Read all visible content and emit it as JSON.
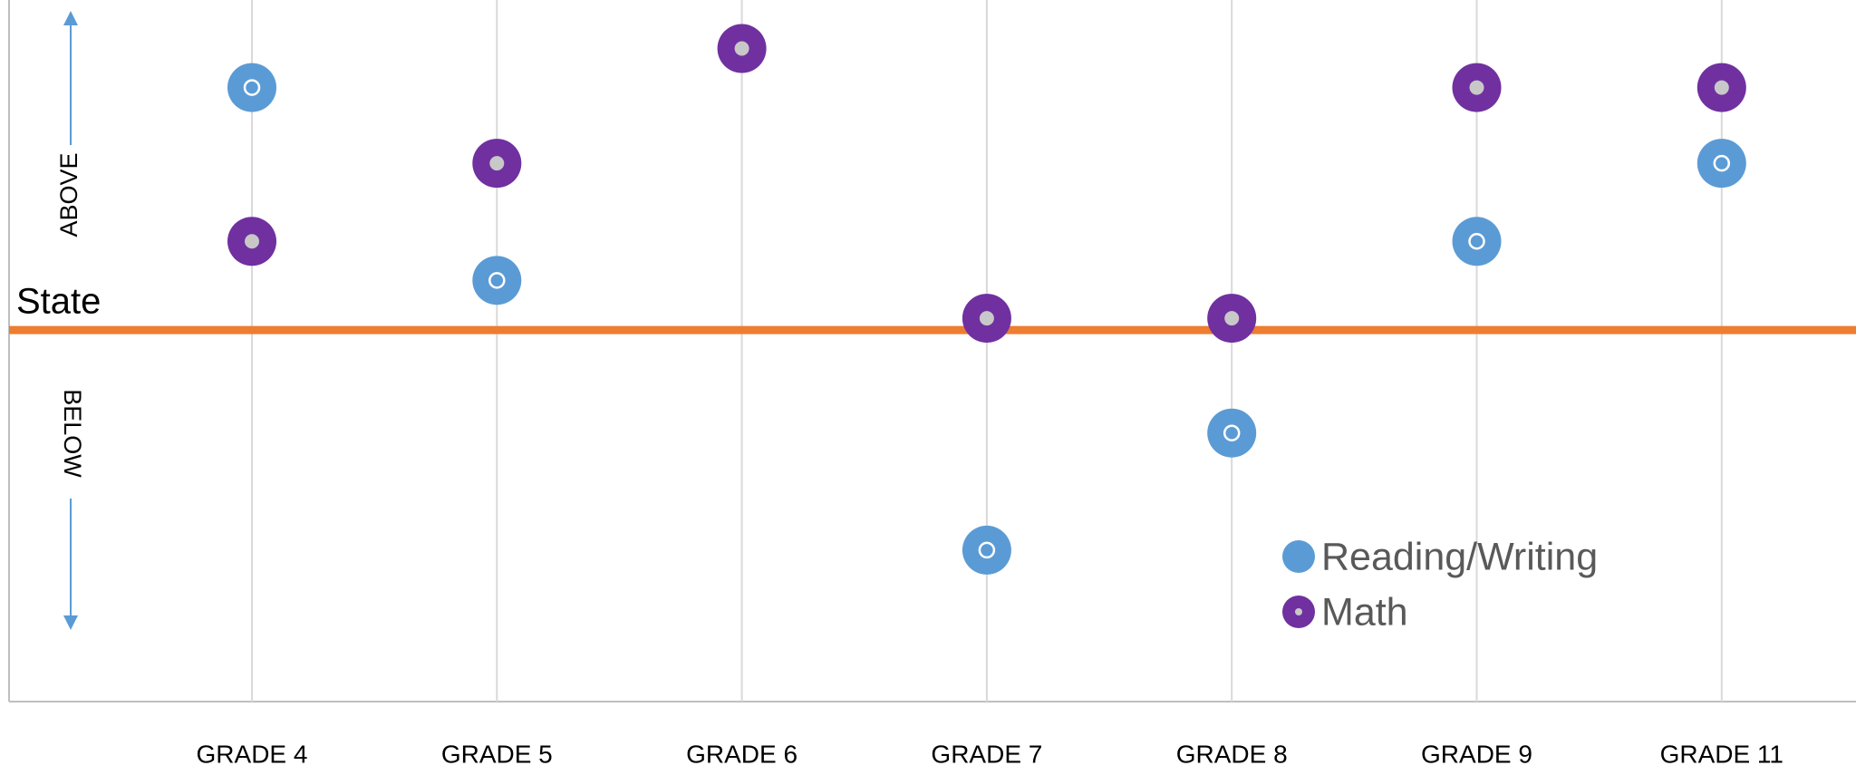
{
  "chart_data": {
    "type": "dot",
    "categories": [
      "GRADE 4",
      "GRADE 5",
      "GRADE 6",
      "GRADE 7",
      "GRADE 8",
      "GRADE 9",
      "GRADE 11"
    ],
    "series": [
      {
        "name": "Reading/Writing",
        "color": "#5b9bd5",
        "center_color": "#ffffff",
        "values": [
          20.5,
          4.2,
          null,
          -18.6,
          -8.7,
          7.5,
          14.1
        ]
      },
      {
        "name": "Math",
        "color": "#7030a0",
        "center_color": "#c8c8c8",
        "values": [
          7.5,
          14.1,
          23.8,
          1,
          1,
          20.5,
          20.5
        ]
      }
    ],
    "reference_line": {
      "value": 0,
      "label": "State",
      "color": "#ed7d31"
    },
    "annotations": [
      "ABOVE",
      "BELOW"
    ],
    "ylim": [
      -31.4,
      27.9
    ],
    "grid": true
  }
}
